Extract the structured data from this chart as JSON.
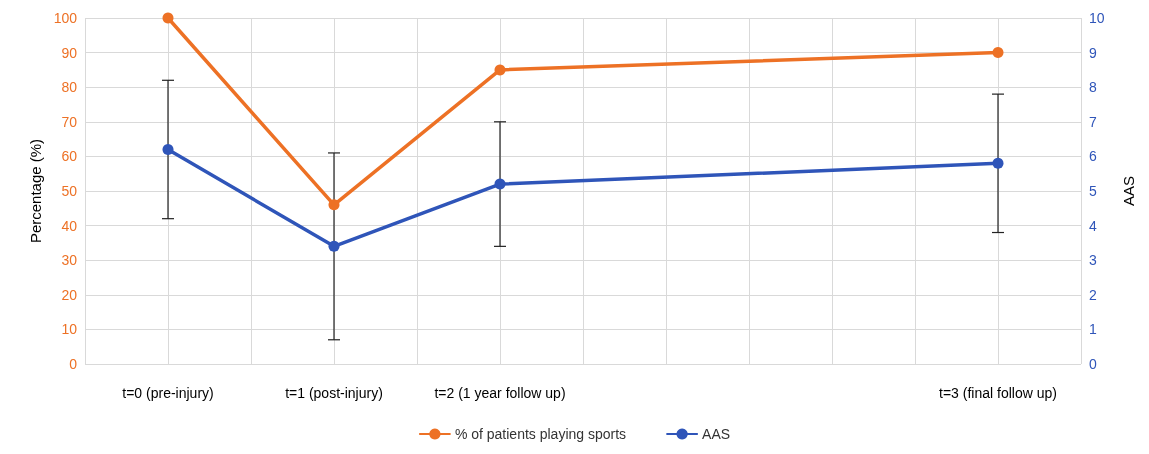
{
  "chart_data": {
    "type": "line",
    "ylabel": "Percentage (%)",
    "y2label": "AAS",
    "categories": [
      null,
      "t=0 (pre-injury)",
      null,
      "t=1 (post-injury)",
      null,
      "t=2 (1 year follow up)",
      null,
      null,
      null,
      null,
      null,
      "t=3 (final follow up)",
      null
    ],
    "series": [
      {
        "name": "% of patients playing sports",
        "color": "#ed7125",
        "values": [
          null,
          100,
          null,
          46,
          null,
          85,
          null,
          null,
          null,
          null,
          null,
          90,
          null
        ]
      },
      {
        "name": "AAS",
        "color": "#2f55b9",
        "axis": "y2",
        "values": [
          null,
          6.2,
          null,
          3.4,
          null,
          5.2,
          null,
          null,
          null,
          null,
          null,
          5.8,
          null
        ],
        "errors": [
          null,
          2,
          null,
          2.7,
          null,
          1.8,
          null,
          null,
          null,
          null,
          null,
          2,
          null
        ]
      }
    ],
    "ylim": [
      0,
      100
    ],
    "yticks": [
      0,
      10,
      20,
      30,
      40,
      50,
      60,
      70,
      80,
      90,
      100
    ],
    "y2lim": [
      0,
      10
    ],
    "y2ticks": [
      0,
      1,
      2,
      3,
      4,
      5,
      6,
      7,
      8,
      9,
      10
    ],
    "grid": true,
    "legend": "bottom",
    "marker": "circle",
    "line_style": "solid"
  }
}
